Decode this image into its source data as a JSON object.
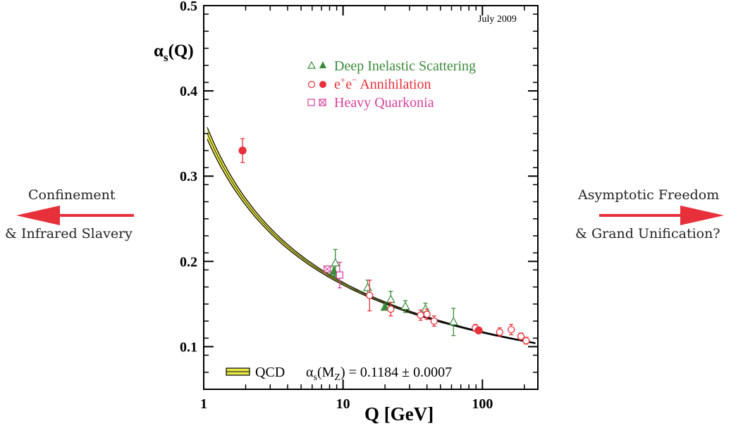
{
  "chart_data": {
    "type": "scatter",
    "title": "",
    "date_label": "July 2009",
    "ylabel_main": "α",
    "ylabel_sub": "s",
    "ylabel_tail": "(Q)",
    "xlabel": "Q [GeV]",
    "xscale": "log",
    "xlim": [
      1,
      250
    ],
    "ylim": [
      0.05,
      0.5
    ],
    "x_ticks": [
      {
        "value": 1,
        "label": "1"
      },
      {
        "value": 10,
        "label": "10"
      },
      {
        "value": 100,
        "label": "100"
      }
    ],
    "y_ticks": [
      {
        "value": 0.1,
        "label": "0.1"
      },
      {
        "value": 0.2,
        "label": "0.2"
      },
      {
        "value": 0.3,
        "label": "0.3"
      },
      {
        "value": 0.4,
        "label": "0.4"
      },
      {
        "value": 0.5,
        "label": "0.5"
      }
    ],
    "legend": [
      {
        "name": "Deep Inelastic Scattering",
        "color": "#3a8a3a",
        "kind": "dis"
      },
      {
        "name": "e+e− Annihilation",
        "prefix": "e",
        "sup1": "+",
        "mid": "e",
        "sup2": "−",
        "suffix": " Annihilation",
        "color": "#e8303a",
        "kind": "ee"
      },
      {
        "name": "Heavy Quarkonia",
        "color": "#d6409a",
        "kind": "hq"
      }
    ],
    "band_label": "QCD",
    "fit_text": {
      "alpha": "α",
      "sub1": "s",
      "mid": "(M",
      "sub2": "Z",
      "rest": ") = 0.1184 ± 0.0007"
    },
    "alpha_s_mz": 0.1184,
    "series": [
      {
        "name": "Deep Inelastic Scattering",
        "color": "#3a8a3a",
        "points": [
          {
            "x": 8.8,
            "y": 0.198,
            "err": 0.016,
            "filled": false
          },
          {
            "x": 8.6,
            "y": 0.188,
            "err": 0.005,
            "filled": true
          },
          {
            "x": 15,
            "y": 0.169,
            "err": 0.009,
            "filled": false
          },
          {
            "x": 20,
            "y": 0.146,
            "err": 0.003,
            "filled": true
          },
          {
            "x": 22,
            "y": 0.155,
            "err": 0.01,
            "filled": false
          },
          {
            "x": 28,
            "y": 0.147,
            "err": 0.007,
            "filled": false
          },
          {
            "x": 39,
            "y": 0.144,
            "err": 0.007,
            "filled": false
          },
          {
            "x": 62,
            "y": 0.129,
            "err": 0.016,
            "filled": false
          }
        ]
      },
      {
        "name": "e+e− Annihilation",
        "color": "#e8303a",
        "points": [
          {
            "x": 1.9,
            "y": 0.33,
            "err": 0.014,
            "filled": true
          },
          {
            "x": 15.5,
            "y": 0.16,
            "err": 0.018,
            "filled": false
          },
          {
            "x": 22,
            "y": 0.144,
            "err": 0.008,
            "filled": false
          },
          {
            "x": 36,
            "y": 0.137,
            "err": 0.006,
            "filled": false
          },
          {
            "x": 40,
            "y": 0.138,
            "err": 0.006,
            "filled": false
          },
          {
            "x": 45,
            "y": 0.13,
            "err": 0.006,
            "filled": false
          },
          {
            "x": 89,
            "y": 0.122,
            "err": 0.004,
            "filled": false
          },
          {
            "x": 94,
            "y": 0.119,
            "err": 0.003,
            "filled": true
          },
          {
            "x": 133,
            "y": 0.117,
            "err": 0.005,
            "filled": false
          },
          {
            "x": 161,
            "y": 0.12,
            "err": 0.006,
            "filled": false
          },
          {
            "x": 189,
            "y": 0.112,
            "err": 0.004,
            "filled": false
          },
          {
            "x": 206,
            "y": 0.107,
            "err": 0.004,
            "filled": false
          }
        ]
      },
      {
        "name": "Heavy Quarkonia",
        "color": "#d6409a",
        "points": [
          {
            "x": 7.7,
            "y": 0.191,
            "err": 0.003,
            "filled": true
          },
          {
            "x": 9.46,
            "y": 0.184,
            "err": 0.015,
            "filled": false
          }
        ]
      }
    ]
  },
  "side_labels": {
    "left_line1": "Confinement",
    "left_line2": "& Infrared Slavery",
    "right_line1": "Asymptotic Freedom",
    "right_line2": "& Grand Unification?",
    "arrow_color": "#e8303a"
  }
}
